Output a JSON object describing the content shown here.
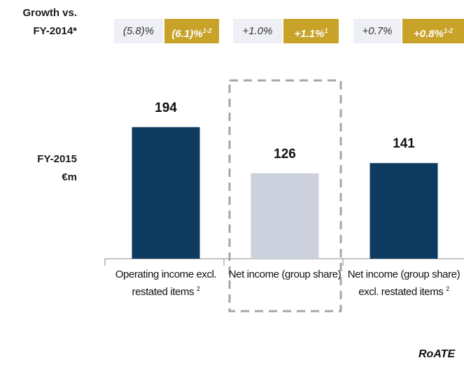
{
  "chart_data": {
    "type": "bar",
    "growth_label": [
      "Growth vs.",
      "FY-2014*"
    ],
    "growth": [
      {
        "reported": "(5.8)%",
        "adjusted": "(6.1)%",
        "note": "1-2"
      },
      {
        "reported": "+1.0%",
        "adjusted": "+1.1%",
        "note": "1"
      },
      {
        "reported": "+0.7%",
        "adjusted": "+0.8%",
        "note": "1-2"
      }
    ],
    "axis_label": [
      "FY-2015",
      "€m"
    ],
    "categories": [
      "Operating income excl. restated items",
      "Net income (group share)",
      "Net income (group share) excl. restated items"
    ],
    "category_footnotes": [
      "2",
      null,
      "2"
    ],
    "values": [
      194,
      126,
      141
    ],
    "colors": [
      "#0e3a5f",
      "#cdd1de",
      "#0e3a5f"
    ],
    "highlight": 1,
    "footer": "RoATE"
  }
}
